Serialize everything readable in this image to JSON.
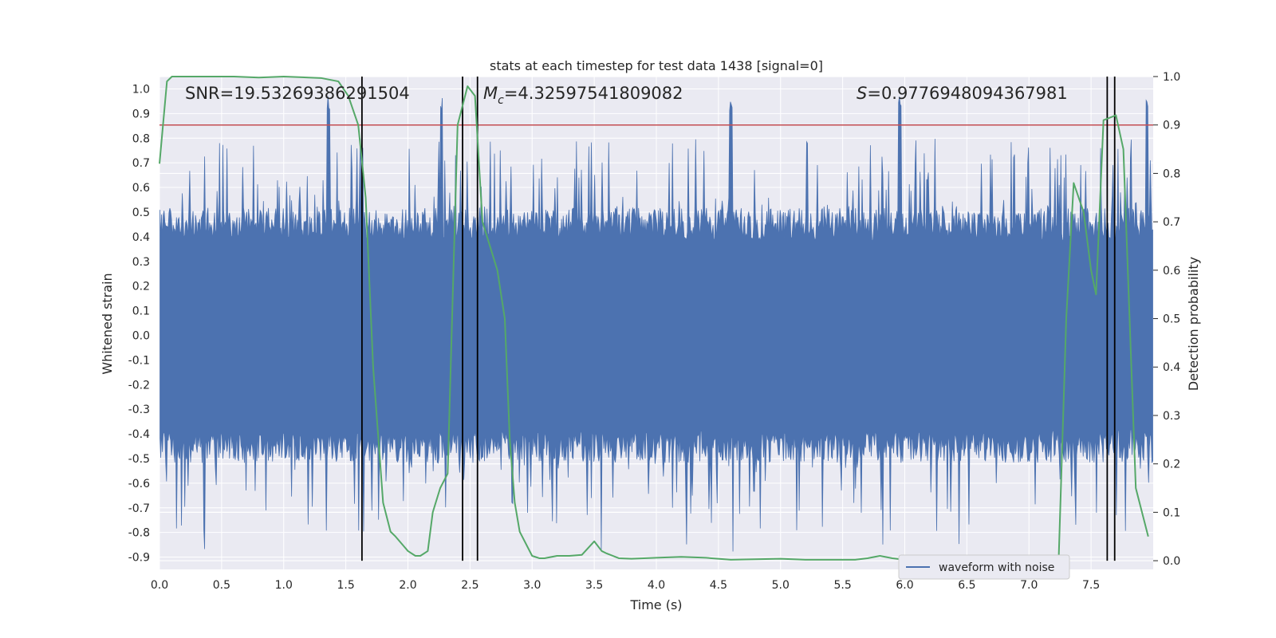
{
  "chart_data": {
    "type": "line",
    "title": "stats at each timestep for test data 1438 [signal=0]",
    "xlabel": "Time (s)",
    "ylabel": "Whitened strain",
    "y2label": "Detection probability",
    "xlim": [
      0.0,
      8.0
    ],
    "ylim": [
      -0.95,
      1.05
    ],
    "y2lim": [
      -0.018,
      1.0
    ],
    "xticks": [
      "0.0",
      "0.5",
      "1.0",
      "1.5",
      "2.0",
      "2.5",
      "3.0",
      "3.5",
      "4.0",
      "4.5",
      "5.0",
      "5.5",
      "6.0",
      "6.5",
      "7.0",
      "7.5"
    ],
    "yticks": [
      "1.0",
      "0.9",
      "0.8",
      "0.7",
      "0.6",
      "0.5",
      "0.4",
      "0.3",
      "0.2",
      "0.1",
      "0.0",
      "-0.1",
      "-0.2",
      "-0.3",
      "-0.4",
      "-0.5",
      "-0.6",
      "-0.7",
      "-0.8",
      "-0.9"
    ],
    "y2ticks": [
      "1.0",
      "0.9",
      "0.8",
      "0.7",
      "0.6",
      "0.5",
      "0.4",
      "0.3",
      "0.2",
      "0.1",
      "0.0"
    ],
    "grid": true,
    "legend": {
      "placement": "lower-right",
      "entries": [
        "waveform with noise"
      ]
    },
    "annotations": {
      "snr": "SNR=19.53269386291504",
      "mc_symbol": "M",
      "mc_sub": "c",
      "mc_value": "=4.32597541809082",
      "s_symbol": "S",
      "s_value": "=0.9776948094367981"
    },
    "colors": {
      "waveform": "#4c72b0",
      "probability": "#55a868",
      "threshold": "#c44e52",
      "marker": "#000000",
      "background": "#eaeaf2",
      "grid": "#ffffff"
    },
    "threshold_probability": 0.9,
    "vertical_markers_s": [
      1.63,
      2.44,
      2.56,
      7.63,
      7.69
    ],
    "series": [
      {
        "name": "waveform with noise",
        "kind": "noise-envelope",
        "samples": 1200,
        "typical_upper": 0.45,
        "typical_lower": -0.45,
        "spike_max": 0.97,
        "spike_min": -0.89,
        "peak_times_s": [
          1.36,
          2.27,
          4.6,
          5.96,
          7.95
        ]
      },
      {
        "name": "detection probability",
        "x": [
          0.0,
          0.06,
          0.1,
          0.2,
          0.4,
          0.6,
          0.8,
          1.0,
          1.2,
          1.3,
          1.44,
          1.52,
          1.6,
          1.66,
          1.72,
          1.8,
          1.86,
          1.9,
          2.0,
          2.06,
          2.1,
          2.16,
          2.2,
          2.26,
          2.32,
          2.4,
          2.48,
          2.54,
          2.6,
          2.66,
          2.72,
          2.78,
          2.82,
          2.86,
          2.9,
          3.0,
          3.06,
          3.1,
          3.2,
          3.3,
          3.4,
          3.5,
          3.56,
          3.6,
          3.7,
          3.8,
          4.0,
          4.2,
          4.4,
          4.6,
          4.8,
          5.0,
          5.2,
          5.4,
          5.6,
          5.7,
          5.8,
          5.9,
          6.0,
          6.2,
          6.4,
          6.6,
          6.8,
          7.0,
          7.2,
          7.24,
          7.3,
          7.36,
          7.44,
          7.5,
          7.54,
          7.6,
          7.7,
          7.76,
          7.86,
          7.96
        ],
        "values": [
          0.82,
          0.99,
          1.0,
          1.0,
          1.0,
          1.0,
          0.998,
          1.0,
          0.998,
          0.997,
          0.99,
          0.96,
          0.9,
          0.75,
          0.4,
          0.12,
          0.06,
          0.05,
          0.02,
          0.01,
          0.01,
          0.02,
          0.1,
          0.15,
          0.18,
          0.9,
          0.98,
          0.96,
          0.7,
          0.65,
          0.6,
          0.5,
          0.25,
          0.12,
          0.06,
          0.01,
          0.005,
          0.005,
          0.01,
          0.01,
          0.012,
          0.04,
          0.02,
          0.015,
          0.005,
          0.004,
          0.006,
          0.008,
          0.006,
          0.002,
          0.003,
          0.004,
          0.002,
          0.002,
          0.002,
          0.005,
          0.01,
          0.005,
          0.002,
          0.002,
          0.003,
          0.002,
          0.002,
          0.002,
          0.004,
          0.01,
          0.5,
          0.78,
          0.72,
          0.6,
          0.55,
          0.91,
          0.92,
          0.85,
          0.15,
          0.05
        ]
      }
    ]
  }
}
